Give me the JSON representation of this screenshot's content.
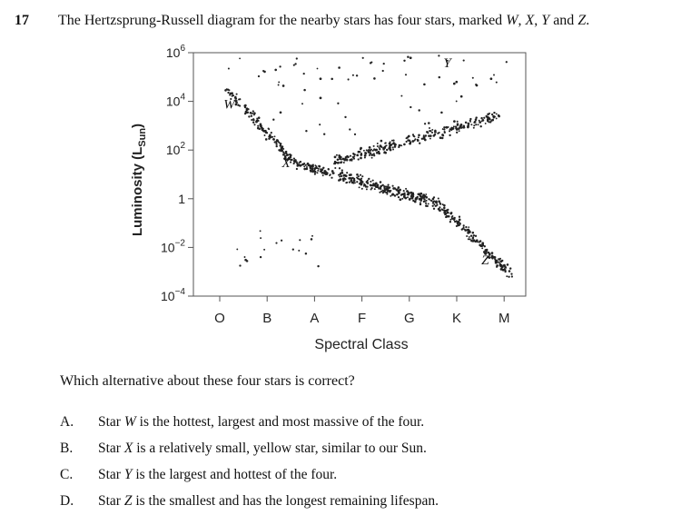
{
  "question": {
    "number": "17",
    "text_pre": "The Hertzsprung-Russell diagram for the nearby stars has four stars, marked ",
    "s1": "W",
    "sep1": ", ",
    "s2": "X",
    "sep2": ", ",
    "s3": "Y",
    "sep3": " and ",
    "s4": "Z",
    "text_post": "."
  },
  "chart_data": {
    "type": "scatter",
    "title": "",
    "ylabel": "Luminosity (L",
    "ylabel_sub": "Sun",
    "ylabel_close": ")",
    "xlabel": "Spectral Class",
    "y_scale": "log",
    "y_ticks": [
      {
        "base": "10",
        "exp": "6",
        "value": 1000000
      },
      {
        "base": "10",
        "exp": "4",
        "value": 10000
      },
      {
        "base": "10",
        "exp": "2",
        "value": 100
      },
      {
        "base": "1",
        "exp": "",
        "value": 1
      },
      {
        "base": "10",
        "exp": "−2",
        "value": 0.01
      },
      {
        "base": "10",
        "exp": "−4",
        "value": 0.0001
      }
    ],
    "x_categories": [
      "O",
      "B",
      "A",
      "F",
      "G",
      "K",
      "M"
    ],
    "grid": false,
    "legend": "none",
    "labeled_stars": [
      {
        "label": "W",
        "class_index": 0.2,
        "log_lum": 3.7
      },
      {
        "label": "X",
        "class_index": 1.4,
        "log_lum": 1.3
      },
      {
        "label": "Y",
        "class_index": 4.8,
        "log_lum": 5.4
      },
      {
        "label": "Z",
        "class_index": 5.6,
        "log_lum": -2.7
      }
    ]
  },
  "prompt": "Which alternative about these four stars is correct?",
  "options": [
    {
      "letter": "A.",
      "pre": "Star ",
      "star": "W",
      "post": " is the hottest, largest and most massive of the four."
    },
    {
      "letter": "B.",
      "pre": "Star ",
      "star": "X",
      "post": " is a relatively small, yellow star, similar to our Sun."
    },
    {
      "letter": "C.",
      "pre": "Star ",
      "star": "Y",
      "post": " is the largest and hottest of the four."
    },
    {
      "letter": "D.",
      "pre": "Star ",
      "star": "Z",
      "post": " is the smallest and has the longest remaining lifespan."
    }
  ]
}
